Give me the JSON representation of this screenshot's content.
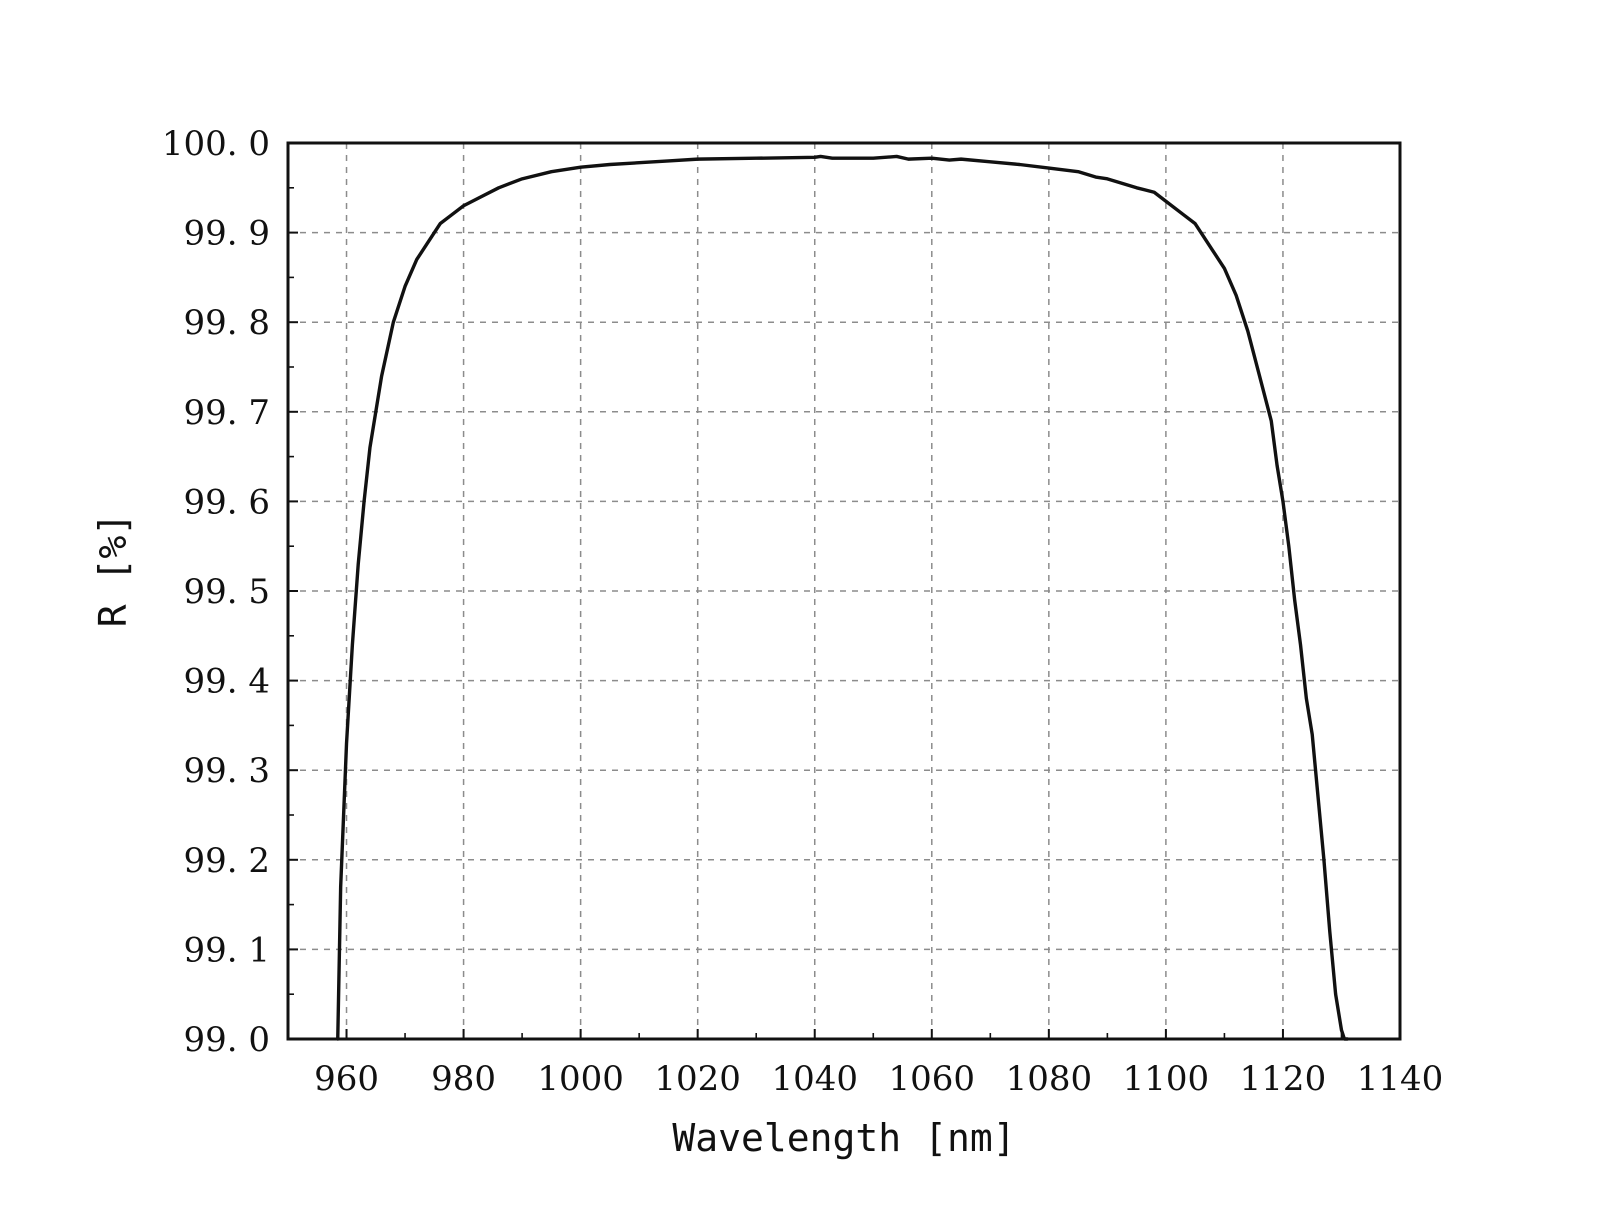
{
  "chart_data": {
    "type": "line",
    "title": "",
    "xlabel": "Wavelength [nm]",
    "ylabel": "R [%]",
    "xlim": [
      950,
      1140
    ],
    "ylim": [
      99.0,
      100.0
    ],
    "x_ticks": [
      960,
      980,
      1000,
      1020,
      1040,
      1060,
      1080,
      1100,
      1120,
      1140
    ],
    "x_tick_labels": [
      "960",
      "980",
      "1000",
      "1020",
      "1040",
      "1060",
      "1080",
      "1100",
      "1120",
      "1140"
    ],
    "y_ticks": [
      99.0,
      99.1,
      99.2,
      99.3,
      99.4,
      99.5,
      99.6,
      99.7,
      99.8,
      99.9,
      100.0
    ],
    "y_tick_labels": [
      "99. 0",
      "99. 1",
      "99. 2",
      "99. 3",
      "99. 4",
      "99. 5",
      "99. 6",
      "99. 7",
      "99. 8",
      "99. 9",
      "100. 0"
    ],
    "grid": true,
    "legend": "none",
    "colors": {
      "line": "#111111",
      "axis": "#111111",
      "grid": "#8c8c8c"
    },
    "series": [
      {
        "x": [
          958.5,
          959.0,
          959.5,
          960.0,
          961.0,
          962.0,
          963.0,
          964.0,
          965.0,
          966.0,
          967.0,
          968.0,
          969.0,
          970.0,
          972.0,
          974.0,
          976.0,
          978.0,
          980.0,
          983.0,
          986.0,
          990.0,
          995.0,
          1000.0,
          1005.0,
          1010.0,
          1015.0,
          1020.0,
          1030.0,
          1040.0,
          1041.0,
          1043.0,
          1050.0,
          1054.0,
          1056.0,
          1060.0,
          1063.0,
          1065.0,
          1070.0,
          1075.0,
          1080.0,
          1085.0,
          1088.0,
          1090.0,
          1095.0,
          1098.0,
          1100.0,
          1103.0,
          1105.0,
          1108.0,
          1110.0,
          1112.0,
          1114.0,
          1116.0,
          1118.0,
          1119.0,
          1120.0,
          1121.0,
          1122.0,
          1123.0,
          1124.0,
          1125.0,
          1126.0,
          1127.0,
          1128.0,
          1129.0,
          1130.0,
          1130.5,
          1131.0
        ],
        "y": [
          99.0,
          99.17,
          99.25,
          99.33,
          99.44,
          99.53,
          99.6,
          99.66,
          99.7,
          99.74,
          99.77,
          99.8,
          99.82,
          99.84,
          99.87,
          99.89,
          99.91,
          99.92,
          99.93,
          99.94,
          99.95,
          99.96,
          99.968,
          99.973,
          99.976,
          99.978,
          99.98,
          99.982,
          99.983,
          99.984,
          99.985,
          99.983,
          99.983,
          99.985,
          99.982,
          99.983,
          99.981,
          99.982,
          99.979,
          99.976,
          99.972,
          99.968,
          99.962,
          99.96,
          99.95,
          99.945,
          99.935,
          99.92,
          99.91,
          99.88,
          99.86,
          99.83,
          99.79,
          99.74,
          99.69,
          99.64,
          99.6,
          99.55,
          99.49,
          99.44,
          99.38,
          99.34,
          99.27,
          99.2,
          99.12,
          99.05,
          99.01,
          99.0,
          99.0
        ]
      }
    ]
  }
}
